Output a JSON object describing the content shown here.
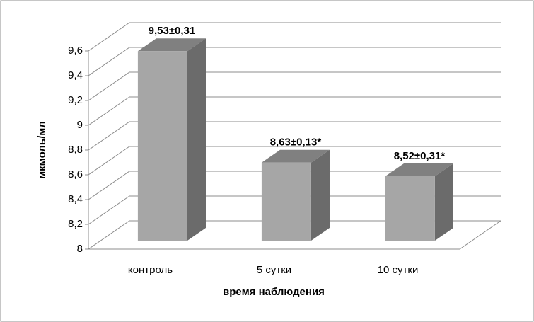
{
  "chart_data": {
    "type": "bar3d",
    "y_label": "мкмоль/мл",
    "x_label": "время наблюдения",
    "categories": [
      "контроль",
      "5 сутки",
      "10 сутки"
    ],
    "values": [
      9.53,
      8.63,
      8.52
    ],
    "value_labels": [
      "9,53±0,31",
      "8,63±0,13*",
      "8,52±0,31*"
    ],
    "color": "#a6a6a6",
    "ylim": [
      8,
      9.6
    ],
    "yticks": [
      8,
      {
        "value": 8.2,
        "label": "8,2"
      },
      {
        "value": 8.4,
        "label": "8,4"
      },
      {
        "value": 8.6,
        "label": "8,6"
      },
      {
        "value": 8.8,
        "label": "8,8"
      },
      9,
      {
        "value": 9.2,
        "label": "9,2"
      },
      {
        "value": 9.4,
        "label": "9,4"
      },
      {
        "value": 9.6,
        "label": "9,6"
      }
    ],
    "grid": true
  }
}
